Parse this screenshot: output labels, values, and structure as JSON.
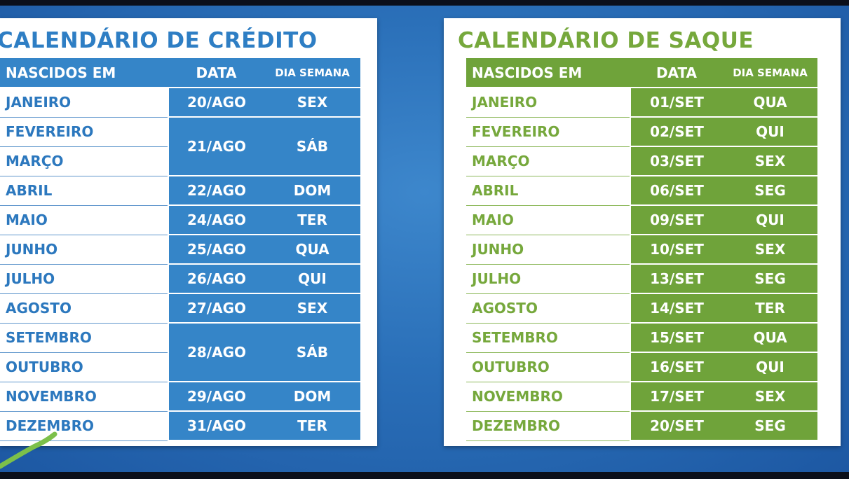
{
  "credit": {
    "title": "CALENDÁRIO DE CRÉDITO",
    "headers": {
      "name": "NASCIDOS EM",
      "date": "DATA",
      "day": "DIA SEMANA"
    },
    "rows": [
      {
        "name": "JANEIRO",
        "date": "20/AGO",
        "day": "SEX"
      },
      {
        "name": "FEVEREIRO",
        "date": "21/AGO",
        "day": "SÁB"
      },
      {
        "name": "MARÇO"
      },
      {
        "name": "ABRIL",
        "date": "22/AGO",
        "day": "DOM"
      },
      {
        "name": "MAIO",
        "date": "24/AGO",
        "day": "TER"
      },
      {
        "name": "JUNHO",
        "date": "25/AGO",
        "day": "QUA"
      },
      {
        "name": "JULHO",
        "date": "26/AGO",
        "day": "QUI"
      },
      {
        "name": "AGOSTO",
        "date": "27/AGO",
        "day": "SEX"
      },
      {
        "name": "SETEMBRO",
        "date": "28/AGO",
        "day": "SÁB"
      },
      {
        "name": "OUTUBRO"
      },
      {
        "name": "NOVEMBRO",
        "date": "29/AGO",
        "day": "DOM"
      },
      {
        "name": "DEZEMBRO",
        "date": "31/AGO",
        "day": "TER"
      }
    ]
  },
  "saque": {
    "title": "CALENDÁRIO DE SAQUE",
    "headers": {
      "name": "NASCIDOS EM",
      "date": "DATA",
      "day": "DIA SEMANA"
    },
    "rows": [
      {
        "name": "JANEIRO",
        "date": "01/SET",
        "day": "QUA"
      },
      {
        "name": "FEVEREIRO",
        "date": "02/SET",
        "day": "QUI"
      },
      {
        "name": "MARÇO",
        "date": "03/SET",
        "day": "SEX"
      },
      {
        "name": "ABRIL",
        "date": "06/SET",
        "day": "SEG"
      },
      {
        "name": "MAIO",
        "date": "09/SET",
        "day": "QUI"
      },
      {
        "name": "JUNHO",
        "date": "10/SET",
        "day": "SEX"
      },
      {
        "name": "JULHO",
        "date": "13/SET",
        "day": "SEG"
      },
      {
        "name": "AGOSTO",
        "date": "14/SET",
        "day": "TER"
      },
      {
        "name": "SETEMBRO",
        "date": "15/SET",
        "day": "QUA"
      },
      {
        "name": "OUTUBRO",
        "date": "16/SET",
        "day": "QUI"
      },
      {
        "name": "NOVEMBRO",
        "date": "17/SET",
        "day": "SEX"
      },
      {
        "name": "DEZEMBRO",
        "date": "20/SET",
        "day": "SEG"
      }
    ]
  },
  "colors": {
    "credit_accent": "#3585c8",
    "saque_accent": "#6fa33a",
    "background": "#2a6fb8",
    "pen_mark": "#7cc04a"
  }
}
